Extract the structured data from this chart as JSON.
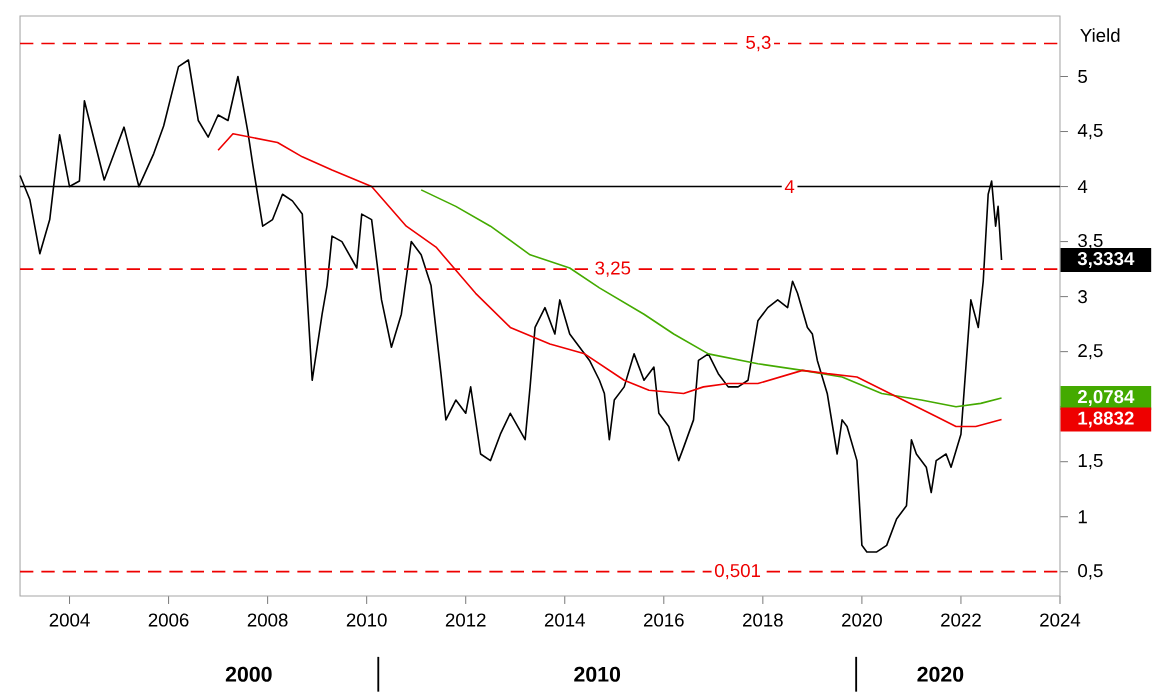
{
  "chart_data": {
    "type": "line",
    "ylabel": "Yield",
    "xlim": [
      2003.0,
      2024.0
    ],
    "ylim": [
      0.28,
      5.55
    ],
    "xticks": [
      2004,
      2006,
      2008,
      2010,
      2012,
      2014,
      2016,
      2018,
      2020,
      2022,
      2024
    ],
    "yticks": [
      {
        "value": 0.5,
        "label": "0,5"
      },
      {
        "value": 1,
        "label": "1"
      },
      {
        "value": 1.5,
        "label": "1,5"
      },
      {
        "value": 2,
        "label": null
      },
      {
        "value": 2.5,
        "label": "2,5"
      },
      {
        "value": 3,
        "label": "3"
      },
      {
        "value": 3.5,
        "label": "3,5"
      },
      {
        "value": 4,
        "label": "4"
      },
      {
        "value": 4.5,
        "label": "4,5"
      },
      {
        "value": 5,
        "label": "5"
      }
    ],
    "series": [
      {
        "color": "#000000",
        "x": [
          2003.0,
          2003.2,
          2003.4,
          2003.6,
          2003.8,
          2004.0,
          2004.2,
          2004.3,
          2004.7,
          2004.9,
          2005.1,
          2005.4,
          2005.7,
          2005.9,
          2006.2,
          2006.4,
          2006.6,
          2006.8,
          2007.0,
          2007.2,
          2007.4,
          2007.6,
          2007.7,
          2007.9,
          2008.1,
          2008.3,
          2008.5,
          2008.7,
          2008.9,
          2009.1,
          2009.2,
          2009.3,
          2009.5,
          2009.8,
          2009.9,
          2010.1,
          2010.3,
          2010.5,
          2010.7,
          2010.9,
          2011.1,
          2011.3,
          2011.5,
          2011.6,
          2011.8,
          2012.0,
          2012.1,
          2012.3,
          2012.5,
          2012.7,
          2012.9,
          2013.2,
          2013.3,
          2013.4,
          2013.6,
          2013.8,
          2013.9,
          2014.1,
          2014.3,
          2014.5,
          2014.7,
          2014.8,
          2014.9,
          2015.0,
          2015.2,
          2015.4,
          2015.6,
          2015.8,
          2015.9,
          2016.1,
          2016.3,
          2016.4,
          2016.6,
          2016.7,
          2016.9,
          2017.1,
          2017.3,
          2017.5,
          2017.7,
          2017.9,
          2018.1,
          2018.3,
          2018.5,
          2018.6,
          2018.7,
          2018.9,
          2019.0,
          2019.1,
          2019.3,
          2019.5,
          2019.6,
          2019.7,
          2019.9,
          2020.0,
          2020.1,
          2020.3,
          2020.5,
          2020.7,
          2020.9,
          2021.0,
          2021.1,
          2021.3,
          2021.4,
          2021.5,
          2021.7,
          2021.8,
          2022.0,
          2022.1,
          2022.2,
          2022.35,
          2022.45,
          2022.55,
          2022.62,
          2022.7,
          2022.75,
          2022.82
        ],
        "values": [
          4.1,
          3.88,
          3.39,
          3.7,
          4.47,
          4.0,
          4.05,
          4.78,
          4.06,
          4.3,
          4.54,
          4.0,
          4.3,
          4.55,
          5.09,
          5.15,
          4.6,
          4.45,
          4.65,
          4.6,
          5.0,
          4.5,
          4.2,
          3.64,
          3.7,
          3.93,
          3.87,
          3.75,
          2.24,
          2.84,
          3.1,
          3.55,
          3.5,
          3.26,
          3.75,
          3.7,
          2.97,
          2.54,
          2.84,
          3.5,
          3.38,
          3.1,
          2.3,
          1.88,
          2.06,
          1.94,
          2.18,
          1.57,
          1.51,
          1.75,
          1.94,
          1.7,
          2.18,
          2.72,
          2.9,
          2.66,
          2.97,
          2.66,
          2.54,
          2.42,
          2.24,
          2.12,
          1.7,
          2.06,
          2.18,
          2.48,
          2.24,
          2.36,
          1.94,
          1.82,
          1.51,
          1.63,
          1.88,
          2.42,
          2.48,
          2.3,
          2.18,
          2.18,
          2.24,
          2.78,
          2.9,
          2.97,
          2.9,
          3.14,
          3.03,
          2.72,
          2.66,
          2.42,
          2.12,
          1.57,
          1.88,
          1.82,
          1.51,
          0.74,
          0.68,
          0.68,
          0.74,
          0.98,
          1.1,
          1.7,
          1.57,
          1.45,
          1.22,
          1.51,
          1.57,
          1.45,
          1.75,
          2.36,
          2.97,
          2.72,
          3.14,
          3.93,
          4.05,
          3.64,
          3.82,
          3.3334
        ]
      },
      {
        "color": "#44aa00",
        "x": [
          2011.1,
          2011.8,
          2012.5,
          2013.3,
          2014.1,
          2014.7,
          2015.6,
          2016.2,
          2016.9,
          2017.9,
          2018.8,
          2019.6,
          2020.4,
          2021.2,
          2021.9,
          2022.4,
          2022.82
        ],
        "values": [
          3.97,
          3.82,
          3.64,
          3.38,
          3.26,
          3.08,
          2.84,
          2.66,
          2.48,
          2.39,
          2.33,
          2.27,
          2.12,
          2.06,
          2.0,
          2.03,
          2.0784
        ]
      },
      {
        "color": "#ee0000",
        "x": [
          2007.0,
          2007.3,
          2008.2,
          2008.7,
          2009.3,
          2010.1,
          2010.8,
          2011.4,
          2012.2,
          2012.9,
          2013.7,
          2014.4,
          2015.2,
          2015.7,
          2016.4,
          2016.8,
          2017.3,
          2017.9,
          2018.8,
          2019.3,
          2019.9,
          2020.7,
          2021.5,
          2021.9,
          2022.3,
          2022.82
        ],
        "values": [
          4.33,
          4.48,
          4.4,
          4.27,
          4.15,
          4.0,
          3.64,
          3.45,
          3.03,
          2.72,
          2.57,
          2.48,
          2.24,
          2.15,
          2.12,
          2.18,
          2.21,
          2.21,
          2.33,
          2.3,
          2.27,
          2.09,
          1.91,
          1.82,
          1.82,
          1.8832
        ]
      }
    ],
    "ref_lines": [
      {
        "axis": "y",
        "value": 5.3,
        "label": "5,3",
        "color": "#ee0000",
        "line_style": "dashed"
      },
      {
        "axis": "y",
        "value": 4,
        "label": "4",
        "color": "#000000",
        "line_style": "solid"
      },
      {
        "axis": "y",
        "value": 3.25,
        "label": "3,25",
        "color": "#ee0000",
        "line_style": "dashed"
      },
      {
        "axis": "y",
        "value": 0.501,
        "label": "0,501",
        "color": "#ee0000",
        "line_style": "dashed"
      }
    ],
    "annotations": [
      "3,3334",
      "2,0784",
      "1,8832",
      "2000",
      "2010",
      "2020"
    ],
    "grid": false,
    "marker": "none",
    "line_style": "solid"
  }
}
